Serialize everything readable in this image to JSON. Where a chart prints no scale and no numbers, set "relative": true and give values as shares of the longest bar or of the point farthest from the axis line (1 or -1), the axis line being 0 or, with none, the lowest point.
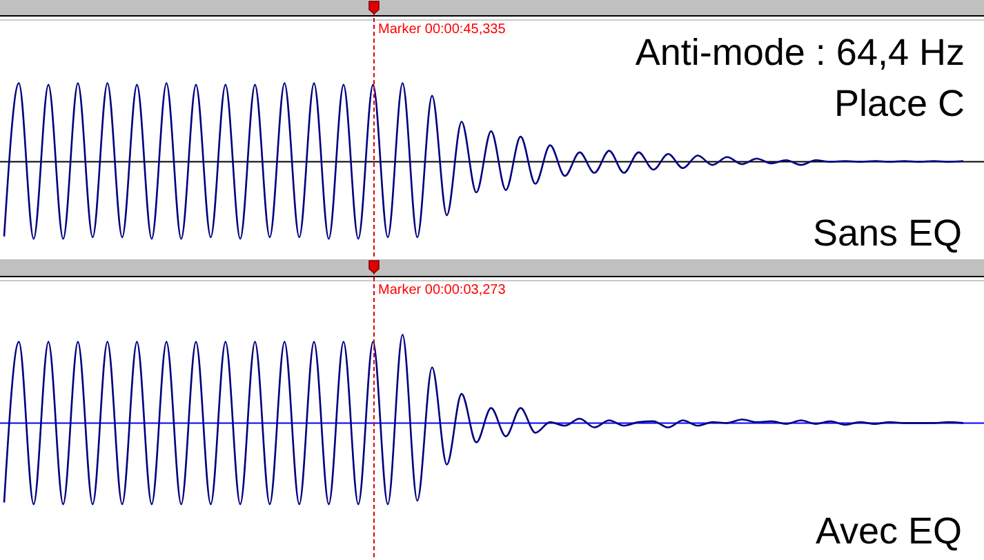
{
  "chart_data": [
    {
      "type": "line",
      "relative": true,
      "ref_lines": [
        {
          "axis": "y",
          "value": 0,
          "color": "#000000"
        }
      ],
      "title": "Anti-mode : 64,4 Hz",
      "subtitle": "Place C",
      "annotations": [
        "Marker 00:00:45,335",
        "Sans EQ"
      ],
      "categories": [
        null,
        null,
        null,
        null,
        null,
        null,
        null,
        null,
        null,
        null,
        null,
        null,
        null,
        null,
        null,
        null,
        null,
        null,
        null,
        null,
        null,
        null,
        null,
        null,
        null,
        null,
        null,
        null,
        null,
        null,
        null,
        null,
        null,
        null,
        null,
        null,
        null,
        null,
        null,
        null,
        null,
        null,
        null,
        null,
        null,
        null,
        null,
        null,
        null,
        null,
        null,
        null,
        null,
        null,
        null,
        null,
        null,
        null,
        null,
        null,
        null,
        null,
        null,
        null,
        null,
        null
      ],
      "series": [
        {
          "color": "#000080",
          "values": [
            -0.95,
            1,
            -0.98,
            0.98,
            -0.98,
            1,
            -0.96,
            1,
            -0.96,
            0.98,
            -0.98,
            1,
            -0.98,
            0.98,
            -0.96,
            0.98,
            -0.98,
            0.98,
            -0.96,
            1,
            -0.96,
            1,
            -0.98,
            0.98,
            -0.98,
            0.98,
            -0.96,
            1,
            -0.96,
            0.84,
            -0.68,
            0.51,
            -0.39,
            0.39,
            -0.36,
            0.32,
            -0.28,
            0.21,
            -0.18,
            0.12,
            -0.14,
            0.14,
            -0.14,
            0.12,
            -0.1,
            0.1,
            -0.08,
            0.08,
            -0.04,
            0.06,
            -0.03,
            0.04,
            -0.02,
            0.02,
            -0.04,
            0.02,
            0,
            0.01,
            0,
            0.01,
            0,
            0.01,
            0,
            0.01,
            0,
            0.01
          ]
        }
      ]
    },
    {
      "type": "line",
      "relative": true,
      "ref_lines": [
        {
          "axis": "y",
          "value": 0,
          "color": "#0000ff"
        }
      ],
      "annotations": [
        "Marker 00:00:03,273",
        "Avec EQ"
      ],
      "categories": [
        null,
        null,
        null,
        null,
        null,
        null,
        null,
        null,
        null,
        null,
        null,
        null,
        null,
        null,
        null,
        null,
        null,
        null,
        null,
        null,
        null,
        null,
        null,
        null,
        null,
        null,
        null,
        null,
        null,
        null,
        null,
        null,
        null,
        null,
        null,
        null,
        null,
        null,
        null,
        null,
        null,
        null,
        null,
        null,
        null,
        null,
        null,
        null,
        null,
        null,
        null,
        null,
        null,
        null,
        null,
        null,
        null,
        null,
        null,
        null,
        null,
        null,
        null,
        null,
        null,
        null
      ],
      "series": [
        {
          "color": "#000080",
          "values": [
            -0.9,
            0.92,
            -0.92,
            0.92,
            -0.92,
            0.92,
            -0.92,
            0.92,
            -0.92,
            0.92,
            -0.92,
            0.92,
            -0.92,
            0.92,
            -0.92,
            0.92,
            -0.92,
            0.92,
            -0.92,
            0.92,
            -0.92,
            0.92,
            -0.92,
            0.92,
            -0.92,
            0.92,
            -0.92,
            1,
            -0.88,
            0.63,
            -0.47,
            0.33,
            -0.22,
            0.17,
            -0.15,
            0.17,
            -0.11,
            0.01,
            -0.03,
            0.05,
            -0.05,
            0.03,
            -0.03,
            0.01,
            0.02,
            -0.05,
            0.03,
            -0.03,
            0.01,
            0,
            0.04,
            0.01,
            0.02,
            -0.01,
            0.03,
            -0.01,
            0.02,
            -0.02,
            0.01,
            -0.01,
            0.01,
            0,
            0,
            0,
            0.01,
            0
          ]
        }
      ]
    }
  ]
}
